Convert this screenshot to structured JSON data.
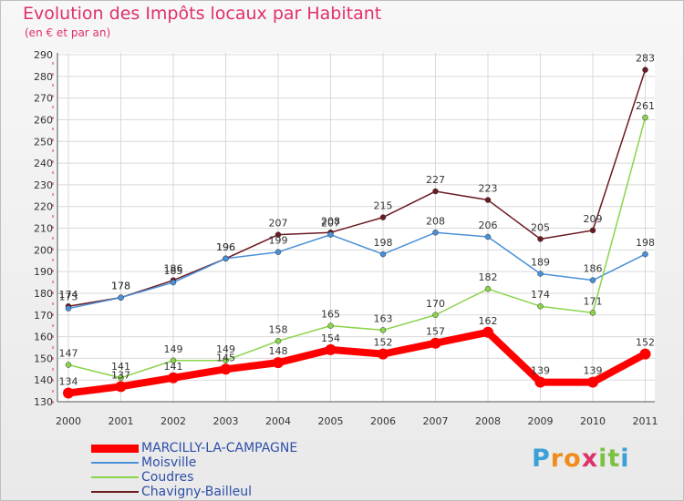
{
  "chart_data": {
    "type": "line",
    "title": "Evolution des Impôts locaux par Habitant",
    "subtitle": "(en € et par an)",
    "xlabel": "",
    "ylabel": "",
    "ylim": [
      130,
      290
    ],
    "yticks": [
      130,
      140,
      150,
      160,
      170,
      180,
      190,
      200,
      210,
      220,
      230,
      240,
      250,
      260,
      270,
      280,
      290
    ],
    "categories": [
      "2000",
      "2001",
      "2002",
      "2003",
      "2004",
      "2005",
      "2006",
      "2007",
      "2008",
      "2009",
      "2010",
      "2011"
    ],
    "grid": true,
    "legend_position": "bottom-left",
    "series": [
      {
        "name": "MARCILLY-LA-CAMPAGNE",
        "color": "#ff0000",
        "values": [
          134,
          137,
          141,
          145,
          148,
          154,
          152,
          157,
          162,
          139,
          139,
          152
        ],
        "labels": [
          "134",
          "137",
          "141",
          "145",
          "148",
          "154",
          "152",
          "157",
          "162",
          "139",
          "139",
          "152"
        ]
      },
      {
        "name": "Moisville",
        "color": "#4a90d9",
        "values": [
          173,
          178,
          185,
          196,
          199,
          207,
          198,
          208,
          206,
          189,
          186,
          198
        ],
        "labels": [
          "173",
          "178",
          "185",
          "196",
          "199",
          "207",
          "198",
          "208",
          "206",
          "189",
          "186",
          "198"
        ]
      },
      {
        "name": "Coudres",
        "color": "#8ad44a",
        "values": [
          147,
          141,
          149,
          149,
          158,
          165,
          163,
          170,
          182,
          174,
          171,
          261
        ],
        "labels": [
          "147",
          "141",
          "149",
          "149",
          "158",
          "165",
          "163",
          "170",
          "182",
          "174",
          "171",
          "261"
        ]
      },
      {
        "name": "Chavigny-Bailleul",
        "color": "#6b1a22",
        "values": [
          174,
          178,
          186,
          196,
          207,
          208,
          215,
          227,
          223,
          205,
          209,
          283
        ],
        "labels": [
          "174",
          "178",
          "186",
          "196",
          "207",
          "208",
          "215",
          "227",
          "223",
          "205",
          "209",
          "283"
        ]
      }
    ]
  },
  "logo": {
    "letters": [
      "P",
      "r",
      "o",
      "x",
      "i",
      "t",
      "i"
    ]
  }
}
